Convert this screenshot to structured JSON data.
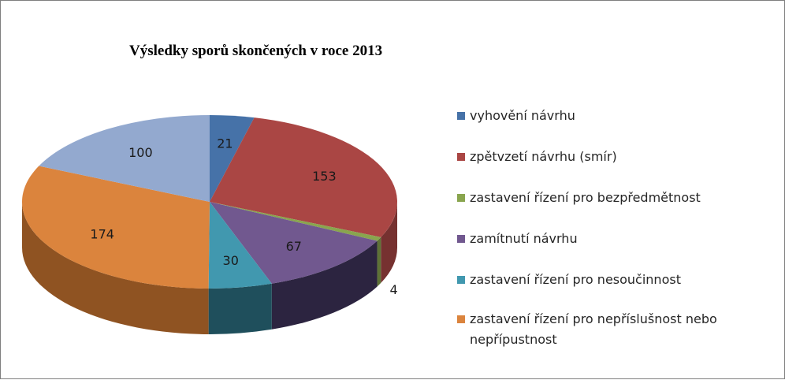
{
  "chart_data": {
    "type": "pie",
    "title": "Výsledky sporů skončených v roce 2013",
    "categories": [
      "vyhovění návrhu",
      "zpětvzetí návrhu (smír)",
      "zastavení řízení pro bezpředmětnost",
      "zamítnutí návrhu",
      "zastavení řízení pro nesoučinnost",
      "zastavení řízení pro nepříslušnost nebo nepřípustnost",
      ""
    ],
    "values": [
      21,
      153,
      4,
      67,
      30,
      174,
      100
    ],
    "colors": [
      "#4672a8",
      "#aa4644",
      "#89a54e",
      "#71588f",
      "#4198af",
      "#db843d",
      "#93a9cf"
    ],
    "side_colors": [
      "#2e4d74",
      "#763130",
      "#5e7236",
      "#2c2440",
      "#1f4f5c",
      "#8f5322",
      "#64769a"
    ],
    "legend_position": "right"
  }
}
